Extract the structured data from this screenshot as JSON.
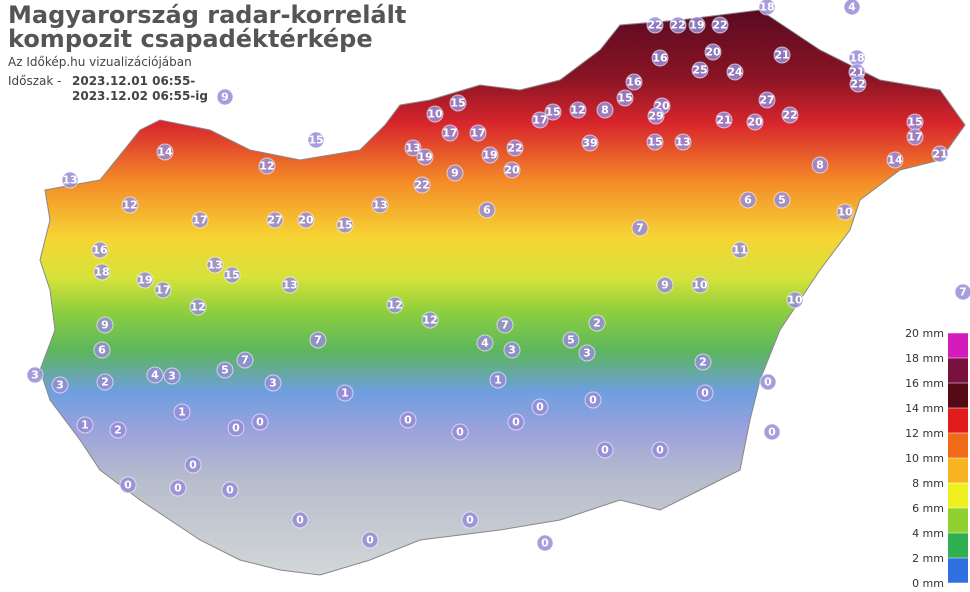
{
  "header": {
    "title_lines": [
      "Magyarország radar-korrelált",
      "kompozit csapadéktérképe"
    ],
    "subtitle": "Az Időkép.hu vizualizációjában",
    "period_label": "Időszak -",
    "period_lines": [
      "2023.12.01 06:55-",
      "2023.12.02 06:55-ig"
    ]
  },
  "stations": [
    22,
    22,
    19,
    22,
    16,
    20,
    25,
    24,
    21,
    18,
    21,
    22,
    27,
    16,
    20,
    29,
    21,
    20,
    22,
    15,
    17,
    21,
    14,
    39,
    22,
    20,
    19,
    17,
    10,
    17,
    13,
    19,
    17,
    15,
    12,
    8,
    15,
    13,
    15,
    14,
    13,
    12,
    17,
    27,
    20,
    15,
    16,
    19,
    17,
    18,
    12,
    13,
    9,
    22,
    6,
    7,
    6,
    5,
    8,
    10,
    11,
    9,
    10,
    10,
    13,
    15,
    13,
    12,
    7,
    9,
    6,
    4,
    3,
    5,
    7,
    3,
    3,
    3,
    2,
    1,
    2,
    1,
    1,
    1,
    2,
    0,
    0,
    0,
    0,
    0,
    0,
    0,
    0,
    0,
    0,
    0,
    0,
    0,
    0,
    0,
    0,
    0,
    0,
    5,
    3,
    2,
    4,
    3,
    7,
    12,
    18,
    4,
    9,
    15,
    15,
    12,
    7,
    0,
    0
  ],
  "legend": {
    "ticks": [
      {
        "value": 20,
        "label": "20 mm"
      },
      {
        "value": 18,
        "label": "18 mm"
      },
      {
        "value": 16,
        "label": "16 mm"
      },
      {
        "value": 14,
        "label": "14 mm"
      },
      {
        "value": 12,
        "label": "12 mm"
      },
      {
        "value": 10,
        "label": "10 mm"
      },
      {
        "value": 8,
        "label": "8 mm"
      },
      {
        "value": 6,
        "label": "6 mm"
      },
      {
        "value": 4,
        "label": "4 mm"
      },
      {
        "value": 2,
        "label": "2 mm"
      },
      {
        "value": 0,
        "label": "0 mm"
      }
    ],
    "colors": [
      "#d41cbc",
      "#7a1040",
      "#560a16",
      "#e21c1c",
      "#f06a1a",
      "#f8b420",
      "#f0f020",
      "#90d030",
      "#30b050",
      "#3070e0"
    ]
  }
}
